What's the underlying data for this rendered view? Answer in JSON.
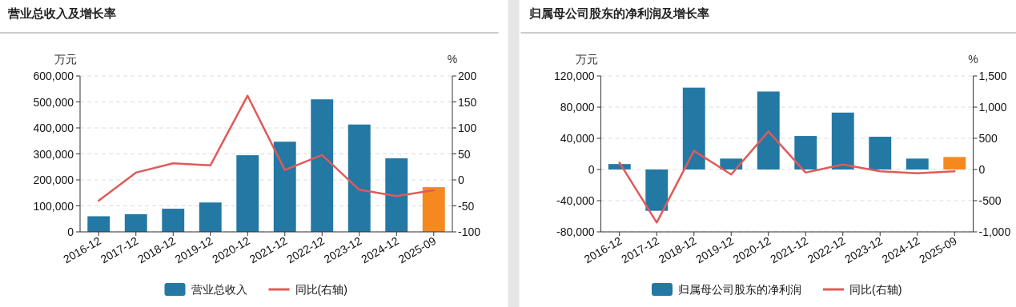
{
  "chart_data": [
    {
      "type": "bar",
      "title": "营业总收入及增长率",
      "ylabel": "万元",
      "y2label": "%",
      "categories": [
        "2016-12",
        "2017-12",
        "2018-12",
        "2019-12",
        "2020-12",
        "2021-12",
        "2022-12",
        "2023-12",
        "2024-12",
        "2025-09"
      ],
      "series": [
        {
          "name": "营业总收入",
          "color": "#2378a4",
          "colors": [
            "#2378a4",
            "#2378a4",
            "#2378a4",
            "#2378a4",
            "#2378a4",
            "#2378a4",
            "#2378a4",
            "#2378a4",
            "#2378a4",
            "#f5891f"
          ],
          "values": [
            60000,
            68000,
            89000,
            113000,
            295000,
            347000,
            510000,
            413000,
            283000,
            172000
          ]
        },
        {
          "name": "同比(右轴)",
          "type": "line",
          "axis": "y2",
          "color": "#e05a5a",
          "values": [
            -40,
            14,
            32,
            28,
            162,
            19,
            48,
            -19,
            -31,
            -20
          ]
        }
      ],
      "ylim": [
        0,
        600000
      ],
      "yticks": [
        0,
        {
          "value": 100000,
          "label": "100,000"
        },
        {
          "value": 200000,
          "label": "200,000"
        },
        {
          "value": 300000,
          "label": "300,000"
        },
        {
          "value": 400000,
          "label": "400,000"
        },
        {
          "value": 500000,
          "label": "500,000"
        },
        {
          "value": 600000,
          "label": "600,000"
        }
      ],
      "y2lim": [
        -100,
        200
      ],
      "y2ticks": [
        -100,
        -50,
        0,
        50,
        100,
        150,
        200
      ],
      "grid": "y",
      "legend": "bottom"
    },
    {
      "type": "bar",
      "title": "归属母公司股东的净利润及增长率",
      "ylabel": "万元",
      "y2label": "%",
      "categories": [
        "2016-12",
        "2017-12",
        "2018-12",
        "2019-12",
        "2020-12",
        "2021-12",
        "2022-12",
        "2023-12",
        "2024-12",
        "2025-09"
      ],
      "series": [
        {
          "name": "归属母公司股东的净利润",
          "color": "#2378a4",
          "colors": [
            "#2378a4",
            "#2378a4",
            "#2378a4",
            "#2378a4",
            "#2378a4",
            "#2378a4",
            "#2378a4",
            "#2378a4",
            "#2378a4",
            "#f5891f"
          ],
          "values": [
            7000,
            -53000,
            105000,
            14000,
            100000,
            43000,
            73000,
            42000,
            14000,
            16000
          ]
        },
        {
          "name": "同比(右轴)",
          "type": "line",
          "axis": "y2",
          "color": "#e05a5a",
          "values": [
            110,
            -850,
            300,
            -80,
            610,
            -50,
            80,
            -30,
            -60,
            -30
          ]
        }
      ],
      "ylim": [
        -80000,
        120000
      ],
      "yticks": [
        {
          "value": -80000,
          "label": "-80,000"
        },
        {
          "value": -40000,
          "label": "-40,000"
        },
        0,
        {
          "value": 40000,
          "label": "40,000"
        },
        {
          "value": 80000,
          "label": "80,000"
        },
        {
          "value": 120000,
          "label": "120,000"
        }
      ],
      "y2lim": [
        -1000,
        1500
      ],
      "y2ticks": [
        {
          "value": -1000,
          "label": "-1,000"
        },
        -500,
        0,
        500,
        {
          "value": 1000,
          "label": "1,000"
        },
        {
          "value": 1500,
          "label": "1,500"
        }
      ],
      "grid": "y",
      "legend": "bottom"
    }
  ]
}
